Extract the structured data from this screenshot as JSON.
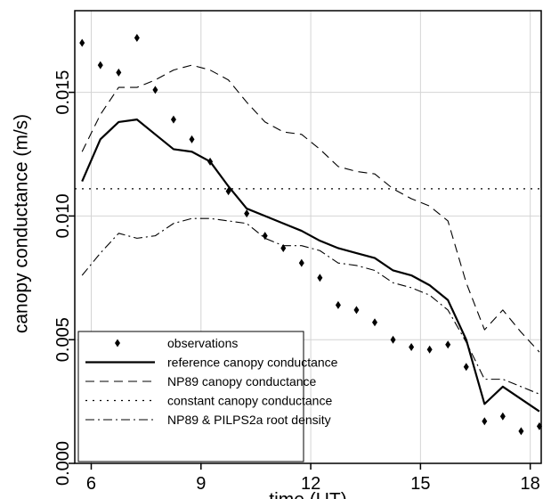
{
  "chart_data": {
    "type": "line",
    "title": "",
    "xlabel": "time (UT)",
    "ylabel": "canopy conductance (m/s)",
    "xlim": [
      5.55,
      18.3
    ],
    "ylim": [
      0.0,
      0.0183
    ],
    "xticks": [
      6,
      9,
      12,
      15,
      18
    ],
    "xtick_labels": [
      "6",
      "9",
      "12",
      "15",
      "18"
    ],
    "yticks": [
      0.0,
      0.005,
      0.01,
      0.015
    ],
    "ytick_labels": [
      "0.000",
      "0.005",
      "0.010",
      "0.015"
    ],
    "grid": true,
    "legend_position": "bottom-left",
    "x": [
      5.75,
      6.25,
      6.75,
      7.25,
      7.75,
      8.25,
      8.75,
      9.25,
      9.75,
      10.25,
      10.75,
      11.25,
      11.75,
      12.25,
      12.75,
      13.25,
      13.75,
      14.25,
      14.75,
      15.25,
      15.75,
      16.25,
      16.75,
      17.25,
      17.75,
      18.25
    ],
    "series": [
      {
        "name": "observations",
        "style": "markers",
        "values": [
          0.017,
          0.0161,
          0.0158,
          0.0172,
          0.0151,
          0.0139,
          0.0131,
          0.0122,
          0.011,
          0.0101,
          0.0092,
          0.0087,
          0.0081,
          0.0075,
          0.0064,
          0.0062,
          0.0057,
          0.005,
          0.0047,
          0.0046,
          0.0048,
          0.0039,
          0.0017,
          0.0019,
          0.0013,
          0.0015
        ]
      },
      {
        "name": "reference  canopy conductance",
        "style": "solid",
        "values": [
          0.0114,
          0.0131,
          0.0138,
          0.0139,
          0.0133,
          0.0127,
          0.0126,
          0.0122,
          0.0112,
          0.0103,
          0.01,
          0.0097,
          0.0094,
          0.009,
          0.0087,
          0.0085,
          0.0083,
          0.0078,
          0.0076,
          0.0072,
          0.0066,
          0.005,
          0.0024,
          0.0031,
          0.0026,
          0.0021
        ]
      },
      {
        "name": "NP89 canopy conductance",
        "style": "dashed",
        "values": [
          0.0126,
          0.0141,
          0.0152,
          0.0152,
          0.0155,
          0.0159,
          0.0161,
          0.0159,
          0.0155,
          0.0146,
          0.0138,
          0.0134,
          0.0133,
          0.0127,
          0.012,
          0.0118,
          0.0117,
          0.0111,
          0.0107,
          0.0104,
          0.0098,
          0.0073,
          0.0054,
          0.0062,
          0.0053,
          0.0045
        ]
      },
      {
        "name": "constant canopy conductance",
        "style": "dotted",
        "values": [
          0.0111,
          0.0111,
          0.0111,
          0.0111,
          0.0111,
          0.0111,
          0.0111,
          0.0111,
          0.0111,
          0.0111,
          0.0111,
          0.0111,
          0.0111,
          0.0111,
          0.0111,
          0.0111,
          0.0111,
          0.0111,
          0.0111,
          0.0111,
          0.0111,
          0.0111,
          0.0111,
          0.0111,
          0.0111,
          0.0111
        ]
      },
      {
        "name": "NP89 & PILPS2a root density",
        "style": "dashdot",
        "values": [
          0.0076,
          0.0085,
          0.0093,
          0.0091,
          0.0092,
          0.0097,
          0.0099,
          0.0099,
          0.0098,
          0.0097,
          0.0091,
          0.0088,
          0.0088,
          0.0086,
          0.0081,
          0.008,
          0.0078,
          0.0073,
          0.0071,
          0.0068,
          0.0062,
          0.0049,
          0.0034,
          0.0034,
          0.0031,
          0.0028
        ]
      }
    ]
  }
}
